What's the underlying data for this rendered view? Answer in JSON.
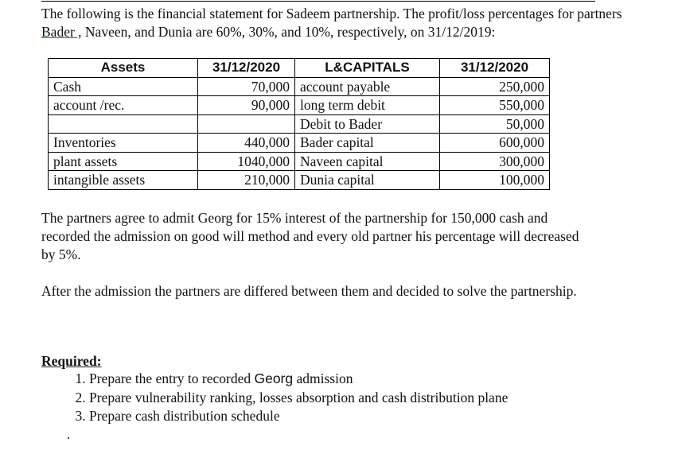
{
  "intro": {
    "before": "The following is the financial statement for Sadeem partnership. The profit/loss percentages for partners ",
    "link": "Bader ,",
    "after": " Naveen, and Dunia are 60%, 30%, and 10%, respectively, on 31/12/2019:"
  },
  "table": {
    "headers": [
      "Assets",
      "31/12/2020",
      "L&CAPITALS",
      "31/12/2020"
    ],
    "rows": [
      [
        "Cash",
        "70,000",
        "account payable",
        "250,000"
      ],
      [
        "account /rec.",
        "90,000",
        "long term debit",
        "550,000"
      ],
      [
        "",
        "",
        "Debit to Bader",
        "50,000"
      ],
      [
        "Inventories",
        "440,000",
        "Bader capital",
        "600,000"
      ],
      [
        "plant assets",
        "1040,000",
        "Naveen capital",
        "300,000"
      ],
      [
        "intangible assets",
        "210,000",
        "Dunia capital",
        "100,000"
      ]
    ]
  },
  "para2": "The partners agree to admit Georg for 15% interest of the partnership for 150,000 cash and recorded the admission on good will method and every old partner his percentage will decreased by 5%.",
  "para3": "After the admission the partners are differed between them and decided to solve the partnership.",
  "required": {
    "title": "Required:",
    "items": [
      {
        "before": "Prepare the entry to recorded ",
        "name": "Georg",
        "after": " admission"
      },
      {
        "text": "Prepare vulnerability ranking, losses absorption and cash distribution plane"
      },
      {
        "text": "Prepare cash distribution schedule"
      }
    ],
    "trailing": "."
  }
}
